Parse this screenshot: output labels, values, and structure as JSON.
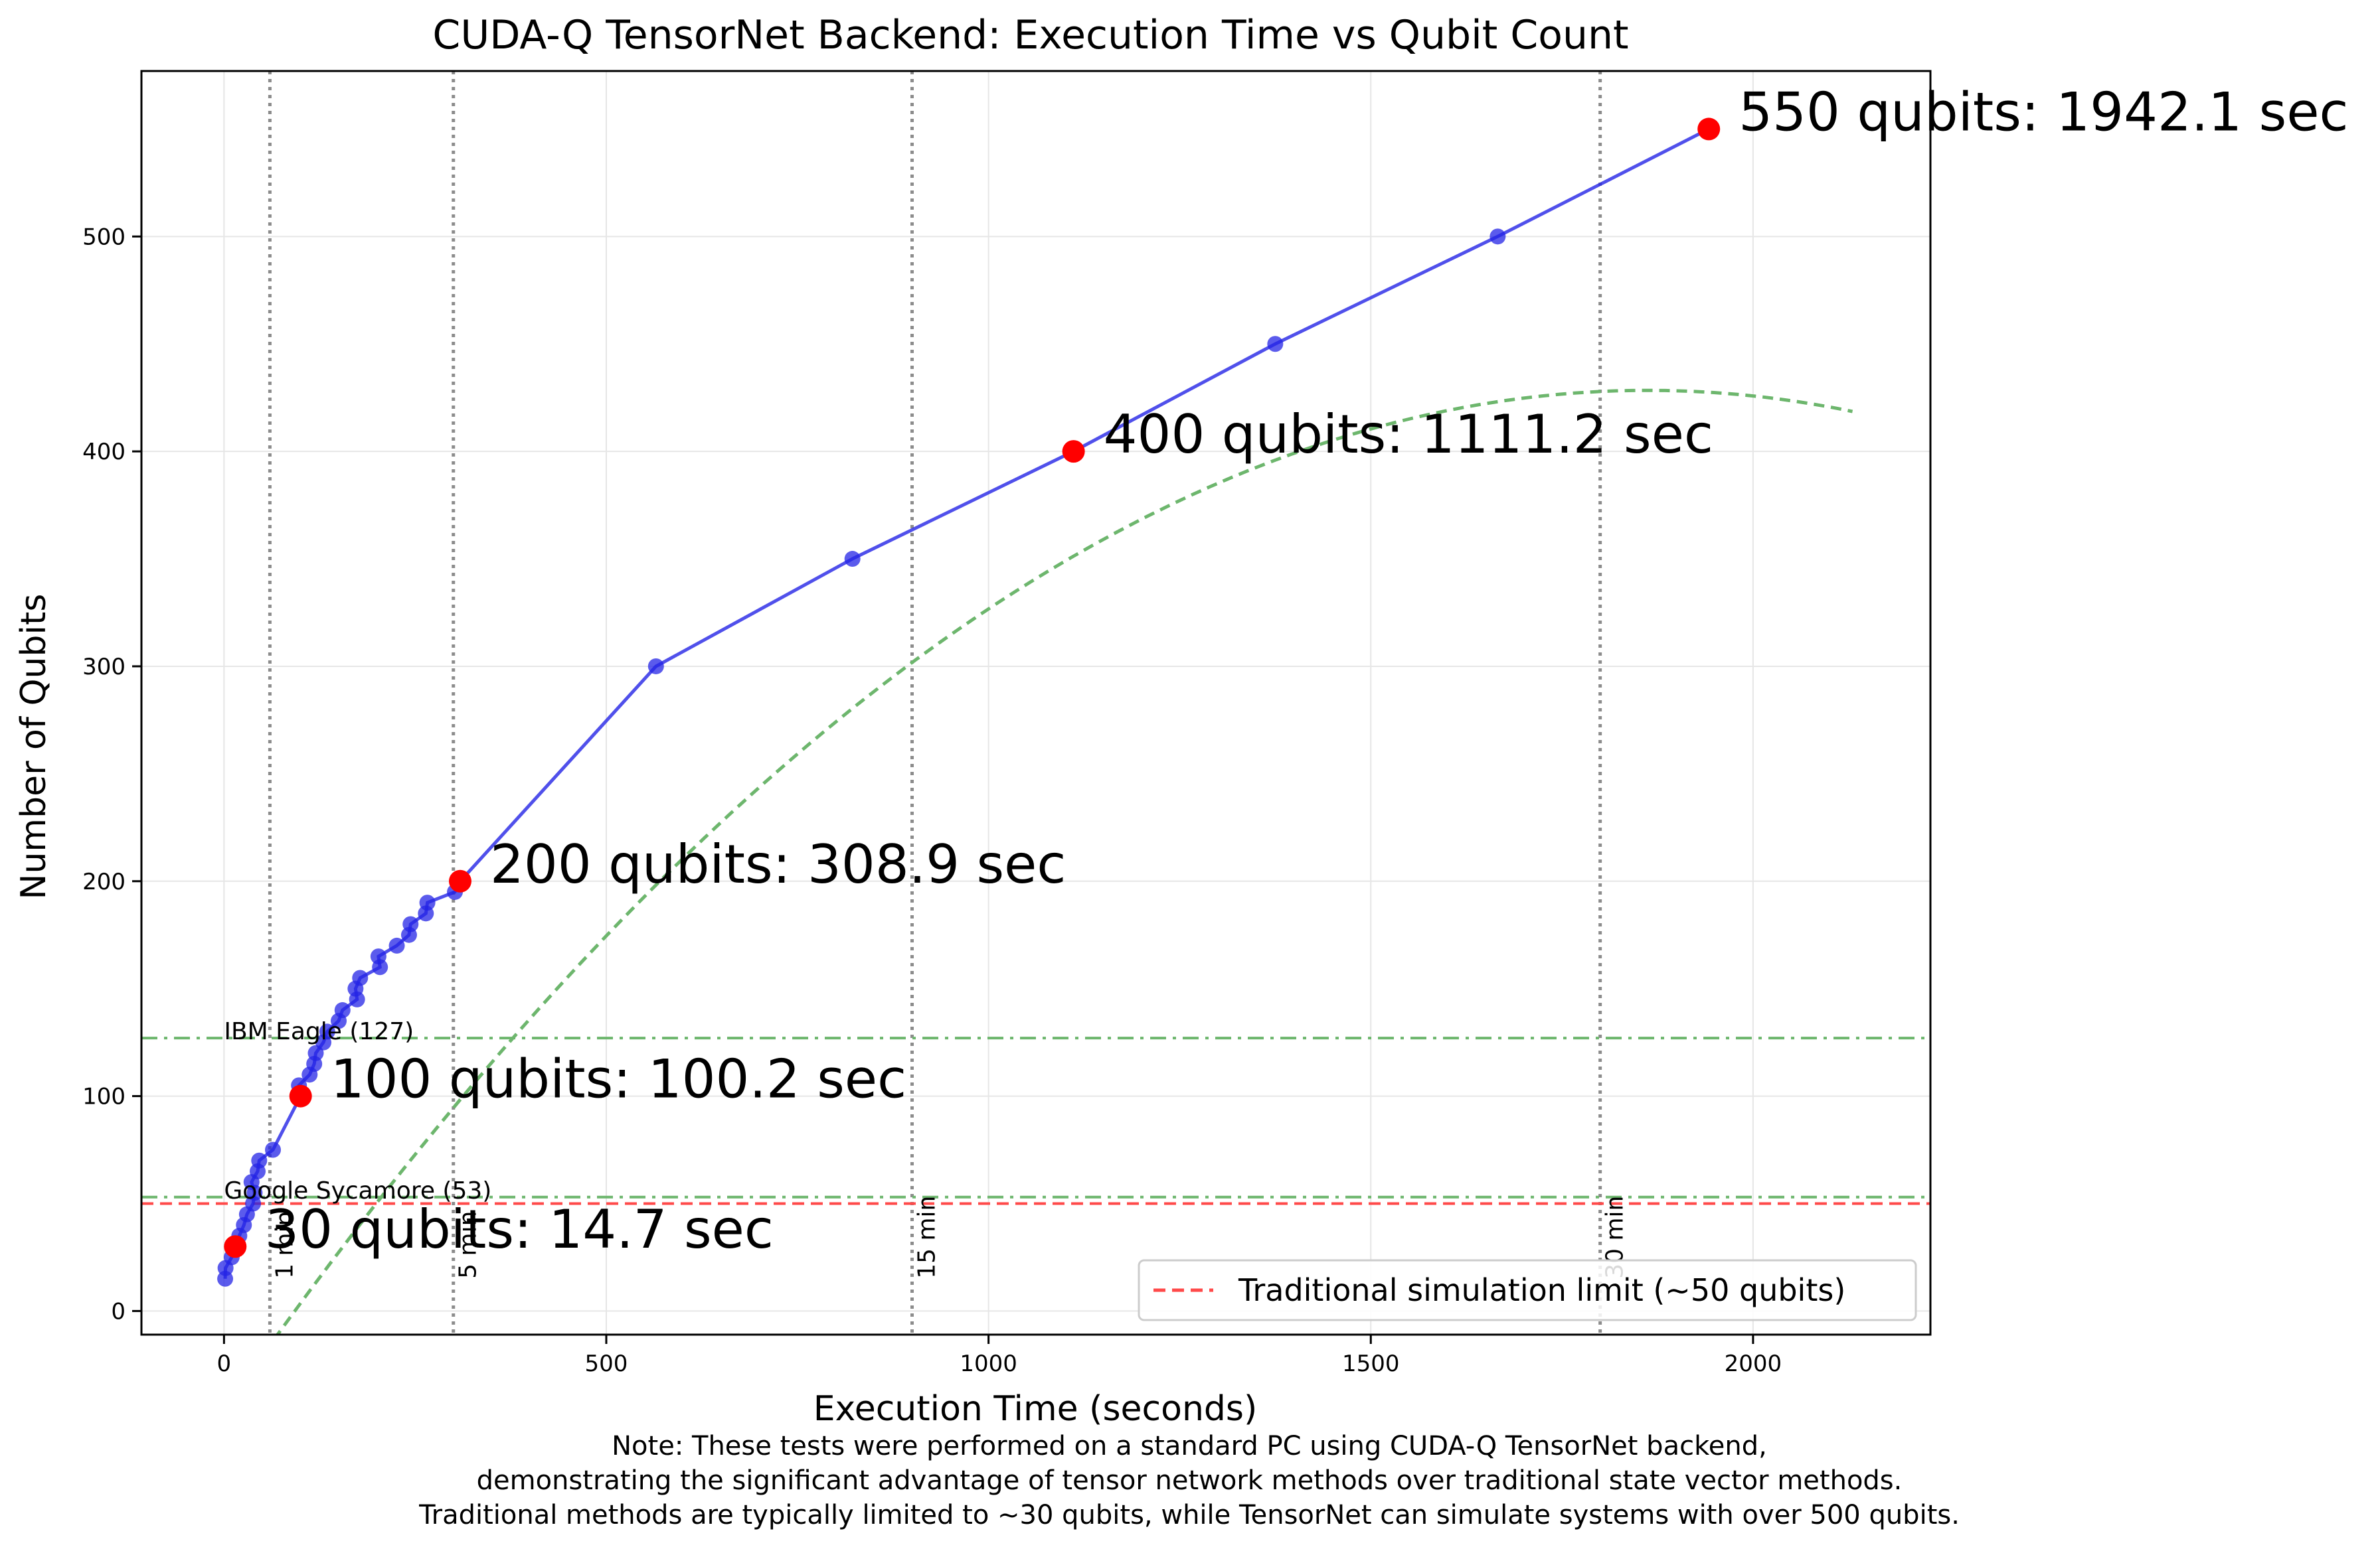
{
  "chart_data": {
    "type": "line",
    "title": "CUDA-Q TensorNet Backend: Execution Time vs Qubit Count",
    "xlabel": "Execution Time (seconds)",
    "ylabel": "Number of Qubits",
    "xlim": [
      -108,
      2232
    ],
    "ylim": [
      -11,
      577
    ],
    "xticks": [
      0,
      500,
      1000,
      1500,
      2000
    ],
    "yticks": [
      0,
      100,
      200,
      300,
      400,
      500
    ],
    "grid": true,
    "legend_position": "lower-right",
    "legend": [
      {
        "label": "Traditional simulation limit (~50 qubits)",
        "style": "dashed",
        "color": "#ff4a4a"
      }
    ],
    "colors": {
      "series": "#2424e6",
      "highlight": "#ff0000",
      "fit": "#6db66d",
      "reference": "#6db66d",
      "limit": "#ff4a4a",
      "time_marker": "#8c8c8c"
    },
    "series": [
      {
        "name": "",
        "points": [
          [
            1.5,
            15
          ],
          [
            2,
            20
          ],
          [
            10,
            25
          ],
          [
            14.7,
            30
          ],
          [
            20,
            35
          ],
          [
            26,
            40
          ],
          [
            30,
            45
          ],
          [
            38,
            50
          ],
          [
            40,
            55
          ],
          [
            36,
            60
          ],
          [
            44,
            65
          ],
          [
            46,
            70
          ],
          [
            64,
            75
          ],
          [
            100.2,
            100
          ],
          [
            98,
            105
          ],
          [
            112,
            110
          ],
          [
            118,
            115
          ],
          [
            120,
            120
          ],
          [
            130,
            125
          ],
          [
            135,
            130
          ],
          [
            150,
            135
          ],
          [
            155,
            140
          ],
          [
            174,
            145
          ],
          [
            172,
            150
          ],
          [
            178,
            155
          ],
          [
            204,
            160
          ],
          [
            202,
            165
          ],
          [
            226,
            170
          ],
          [
            242,
            175
          ],
          [
            244,
            180
          ],
          [
            264,
            185
          ],
          [
            266,
            190
          ],
          [
            302,
            195
          ],
          [
            308.9,
            200
          ],
          [
            565,
            300
          ],
          [
            822,
            350
          ],
          [
            1111.2,
            400
          ],
          [
            1375,
            450
          ],
          [
            1666,
            500
          ],
          [
            1942.1,
            550
          ]
        ]
      }
    ],
    "highlighted_points": [
      {
        "x": 14.7,
        "y": 30,
        "label": "30 qubits: 14.7 sec"
      },
      {
        "x": 100.2,
        "y": 100,
        "label": "100 qubits: 100.2 sec"
      },
      {
        "x": 308.9,
        "y": 200,
        "label": "200 qubits: 308.9 sec"
      },
      {
        "x": 1111.2,
        "y": 400,
        "label": "400 qubits: 1111.2 sec"
      },
      {
        "x": 1942.1,
        "y": 550,
        "label": "550 qubits: 1942.1 sec"
      }
    ],
    "fit_curve": {
      "style": "dashed",
      "coefficients": [
        -46.0,
        0.5095,
        -0.0001368
      ],
      "x_range": [
        0,
        2130
      ]
    },
    "reference_lines": [
      {
        "y": 127,
        "label": "IBM Eagle (127)",
        "style": "dashdot"
      },
      {
        "y": 53,
        "label": "Google Sycamore (53)",
        "style": "dashdot"
      },
      {
        "y": 50,
        "label": "",
        "style": "dashed",
        "color": "limit"
      }
    ],
    "time_markers": [
      {
        "x": 60,
        "label": "1 min"
      },
      {
        "x": 300,
        "label": "5 min"
      },
      {
        "x": 900,
        "label": "15 min"
      },
      {
        "x": 1800,
        "label": "30 min"
      }
    ]
  },
  "note": [
    "Note: These tests were performed on a standard PC using CUDA-Q TensorNet backend,",
    "demonstrating the significant advantage of tensor network methods over traditional state vector methods.",
    "Traditional methods are typically limited to ~30 qubits, while TensorNet can simulate systems with over 500 qubits."
  ]
}
